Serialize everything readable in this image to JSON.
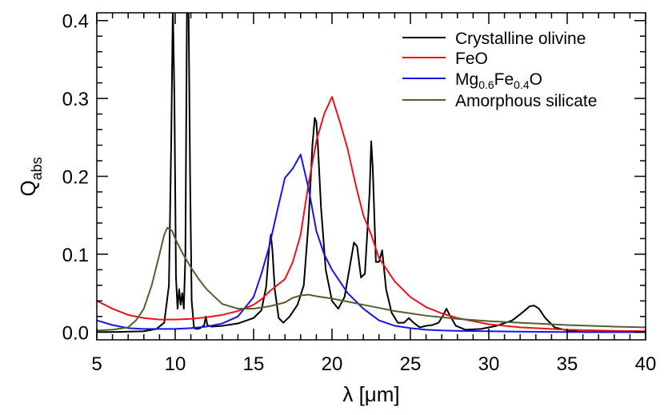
{
  "chart_data": {
    "type": "line",
    "title": "",
    "xlabel": "λ [μm]",
    "ylabel": "Q",
    "ylabel_sub": "abs",
    "xlim": [
      5,
      40
    ],
    "ylim": [
      -0.01,
      0.41
    ],
    "xticks": [
      5,
      10,
      15,
      20,
      25,
      30,
      35,
      40
    ],
    "yticks": [
      0.0,
      0.1,
      0.2,
      0.3,
      0.4
    ],
    "xtick_labels": [
      "5",
      "10",
      "15",
      "20",
      "25",
      "30",
      "35",
      "40"
    ],
    "ytick_labels": [
      "0.0",
      "0.1",
      "0.2",
      "0.3",
      "0.4"
    ],
    "grid": false,
    "legend_position": "top-right",
    "series": [
      {
        "name": "Crystalline olivine",
        "color": "#000000",
        "x": [
          5,
          6,
          7,
          8,
          8.8,
          9.3,
          9.6,
          9.75,
          9.85,
          9.95,
          10.05,
          10.15,
          10.25,
          10.35,
          10.45,
          10.55,
          10.65,
          10.75,
          10.85,
          10.95,
          11.05,
          11.2,
          11.4,
          11.6,
          11.85,
          11.95,
          12.05,
          12.3,
          13,
          14,
          15,
          15.5,
          15.8,
          16,
          16.1,
          16.2,
          16.35,
          16.6,
          16.9,
          17.3,
          17.8,
          18.2,
          18.5,
          18.75,
          18.9,
          19.0,
          19.1,
          19.3,
          19.6,
          20.0,
          20.4,
          20.8,
          21.1,
          21.4,
          21.6,
          21.85,
          22.1,
          22.4,
          22.5,
          22.6,
          22.8,
          23.0,
          23.2,
          23.45,
          23.8,
          24.2,
          24.6,
          24.9,
          25.2,
          25.6,
          26.0,
          26.4,
          26.8,
          27.1,
          27.3,
          27.5,
          27.9,
          28.5,
          29.5,
          30.5,
          31.5,
          32.2,
          32.6,
          32.9,
          33.2,
          33.6,
          34.2,
          35.0,
          36.0,
          37.5,
          40
        ],
        "values": [
          0.0,
          0.0,
          0.0005,
          0.001,
          0.004,
          0.012,
          0.06,
          0.25,
          0.42,
          0.3,
          0.07,
          0.03,
          0.055,
          0.035,
          0.05,
          0.03,
          0.1,
          0.42,
          0.42,
          0.2,
          0.04,
          0.005,
          0.004,
          0.005,
          0.009,
          0.02,
          0.009,
          0.007,
          0.008,
          0.011,
          0.018,
          0.028,
          0.058,
          0.11,
          0.125,
          0.105,
          0.055,
          0.018,
          0.012,
          0.02,
          0.035,
          0.06,
          0.14,
          0.24,
          0.275,
          0.27,
          0.24,
          0.16,
          0.08,
          0.04,
          0.03,
          0.045,
          0.08,
          0.115,
          0.11,
          0.07,
          0.075,
          0.18,
          0.245,
          0.21,
          0.09,
          0.09,
          0.105,
          0.055,
          0.025,
          0.012,
          0.012,
          0.018,
          0.012,
          0.006,
          0.008,
          0.009,
          0.012,
          0.022,
          0.03,
          0.022,
          0.008,
          0.003,
          0.004,
          0.008,
          0.015,
          0.026,
          0.033,
          0.034,
          0.03,
          0.018,
          0.006,
          0.002,
          0.0,
          0.0,
          0.0
        ]
      },
      {
        "name": "FeO",
        "color": "#e8141a",
        "x": [
          5,
          6,
          7,
          8,
          9,
          10,
          11,
          12,
          13,
          14,
          15,
          15.5,
          16,
          16.5,
          17,
          17.5,
          18,
          18.5,
          19,
          19.5,
          20,
          20.5,
          21,
          21.5,
          22,
          22.5,
          23,
          24,
          25,
          26,
          27,
          28,
          30,
          32,
          35,
          38,
          40
        ],
        "values": [
          0.04,
          0.03,
          0.022,
          0.018,
          0.016,
          0.016,
          0.017,
          0.019,
          0.022,
          0.027,
          0.035,
          0.042,
          0.052,
          0.06,
          0.068,
          0.09,
          0.125,
          0.19,
          0.245,
          0.28,
          0.302,
          0.27,
          0.235,
          0.19,
          0.15,
          0.125,
          0.095,
          0.065,
          0.045,
          0.032,
          0.024,
          0.018,
          0.01,
          0.006,
          0.003,
          0.0015,
          0.001
        ]
      },
      {
        "name": "Mg₀.₆Fe₀.₄O",
        "name_main": "Mg",
        "name_sub1": "0.6",
        "name_mid": "Fe",
        "name_sub2": "0.4",
        "name_end": "O",
        "color": "#1515e6",
        "x": [
          5,
          6,
          7,
          8,
          9,
          10,
          11,
          12,
          13,
          14,
          15,
          15.5,
          16,
          16.5,
          17,
          17.5,
          18,
          18.5,
          19,
          19.5,
          20,
          21,
          22,
          23,
          24,
          25,
          26,
          27,
          28,
          30,
          32,
          35,
          38,
          40
        ],
        "values": [
          0.015,
          0.009,
          0.005,
          0.004,
          0.004,
          0.004,
          0.005,
          0.007,
          0.011,
          0.02,
          0.045,
          0.075,
          0.11,
          0.155,
          0.198,
          0.21,
          0.228,
          0.185,
          0.13,
          0.1,
          0.08,
          0.05,
          0.03,
          0.015,
          0.008,
          0.005,
          0.003,
          0.002,
          0.0015,
          0.001,
          0.0005,
          0.0,
          0.0,
          0.0
        ]
      },
      {
        "name": "Amorphous silicate",
        "color": "#4e6130",
        "x": [
          5,
          6,
          7,
          7.5,
          8,
          8.5,
          9,
          9.3,
          9.5,
          9.8,
          10,
          10.5,
          11,
          11.5,
          12,
          13,
          14,
          15,
          16,
          17,
          17.5,
          18,
          18.5,
          19,
          20,
          21,
          22,
          23,
          24,
          25,
          26,
          27,
          28,
          30,
          32,
          35,
          38,
          40
        ],
        "values": [
          0.002,
          0.003,
          0.006,
          0.015,
          0.03,
          0.06,
          0.1,
          0.125,
          0.134,
          0.13,
          0.12,
          0.1,
          0.083,
          0.068,
          0.055,
          0.036,
          0.03,
          0.03,
          0.033,
          0.038,
          0.044,
          0.047,
          0.048,
          0.046,
          0.043,
          0.039,
          0.035,
          0.031,
          0.027,
          0.024,
          0.021,
          0.019,
          0.017,
          0.014,
          0.012,
          0.009,
          0.007,
          0.006
        ]
      }
    ]
  }
}
